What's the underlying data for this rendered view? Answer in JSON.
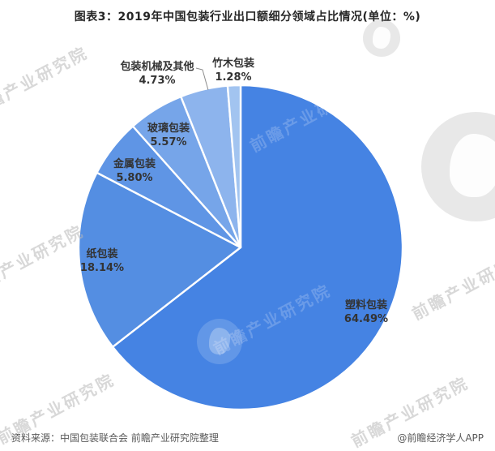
{
  "title": "图表3：2019年中国包装行业出口额细分领域占比情况(单位：%)",
  "chart_data": {
    "type": "pie",
    "title": "2019年中国包装行业出口额细分领域占比情况",
    "unit": "%",
    "start_angle_deg": 0,
    "direction": "clockwise",
    "labels_on_chart": true,
    "legend": "none",
    "slices": [
      {
        "label": "塑料包装",
        "value": 64.49,
        "display": "64.49%",
        "color": "#4583E3"
      },
      {
        "label": "纸包装",
        "value": 18.14,
        "display": "18.14%",
        "color": "#548EE2"
      },
      {
        "label": "金属包装",
        "value": 5.8,
        "display": "5.80%",
        "color": "#5F95E5"
      },
      {
        "label": "玻璃包装",
        "value": 5.57,
        "display": "5.57%",
        "color": "#76A5E9"
      },
      {
        "label": "包装机械及其他",
        "value": 4.73,
        "display": "4.73%",
        "color": "#8DB4ED"
      },
      {
        "label": "竹木包装",
        "value": 1.28,
        "display": "1.28%",
        "color": "#A2C4F0"
      }
    ]
  },
  "footer": {
    "source": "资料来源：中国包装联合会 前瞻产业研究院整理",
    "credit": "@前瞻经济学人APP"
  },
  "watermark": {
    "text": "前瞻产业研究院",
    "logo_name": "qianzhan-logo"
  }
}
